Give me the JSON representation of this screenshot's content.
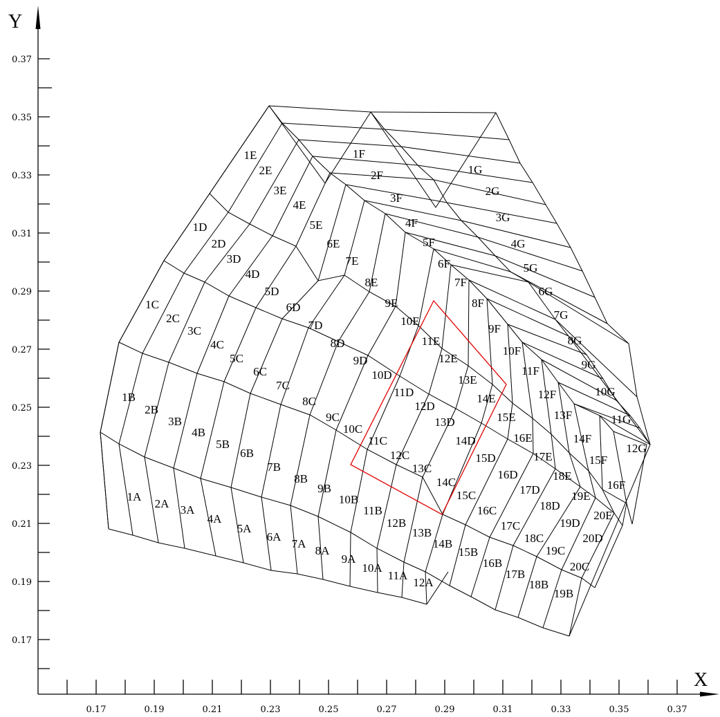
{
  "axes": {
    "x_title": "X",
    "y_title": "Y",
    "x_tick_labels": [
      "0.17",
      "0.19",
      "0.21",
      "0.23",
      "0.25",
      "0.27",
      "0.29",
      "0.31",
      "0.33",
      "0.35",
      "0.37"
    ],
    "y_tick_labels": [
      "0.37",
      "0.35",
      "0.33",
      "0.31",
      "0.29",
      "0.27",
      "0.25",
      "0.23",
      "0.21",
      "0.19",
      "0.17"
    ]
  },
  "colors": {
    "grid": "#000000",
    "highlight": "#e00000"
  },
  "cells": [
    "1A",
    "2A",
    "3A",
    "4A",
    "5A",
    "6A",
    "7A",
    "8A",
    "9A",
    "10A",
    "11A",
    "12A",
    "1B",
    "2B",
    "3B",
    "4B",
    "5B",
    "6B",
    "7B",
    "8B",
    "9B",
    "10B",
    "11B",
    "12B",
    "13B",
    "14B",
    "15B",
    "16B",
    "17B",
    "18B",
    "19B",
    "1C",
    "2C",
    "3C",
    "4C",
    "5C",
    "6C",
    "7C",
    "8C",
    "9C",
    "10C",
    "11C",
    "12C",
    "13C",
    "14C",
    "15C",
    "16C",
    "17C",
    "18C",
    "19C",
    "20C",
    "1D",
    "2D",
    "3D",
    "4D",
    "5D",
    "6D",
    "7D",
    "8D",
    "9D",
    "10D",
    "11D",
    "12D",
    "13D",
    "14D",
    "15D",
    "16D",
    "17D",
    "18D",
    "19D",
    "20D",
    "1E",
    "2E",
    "3E",
    "4E",
    "5E",
    "6E",
    "7E",
    "8E",
    "9E",
    "10E",
    "11E",
    "12E",
    "13E",
    "14E",
    "15E",
    "16E",
    "17E",
    "18E",
    "19E",
    "20E",
    "1F",
    "2F",
    "3F",
    "4F",
    "5F",
    "6F",
    "7F",
    "8F",
    "9F",
    "10F",
    "11F",
    "12F",
    "13F",
    "14F",
    "15F",
    "16F",
    "1G",
    "2G",
    "3G",
    "4G",
    "5G",
    "6G",
    "7G",
    "8G",
    "9G",
    "10G",
    "11G",
    "12G"
  ]
}
